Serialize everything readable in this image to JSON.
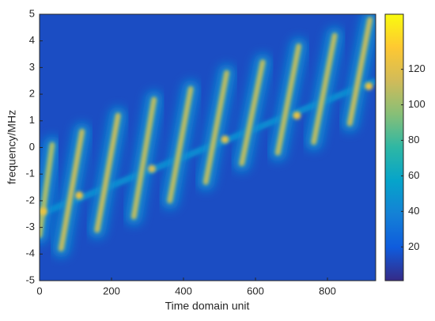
{
  "chart_data": {
    "type": "heatmap",
    "xlabel": "Time domain unit",
    "ylabel": "frequency/MHz",
    "xlim": [
      0,
      934
    ],
    "ylim": [
      -5,
      5
    ],
    "xticks": [
      0,
      200,
      400,
      600,
      800
    ],
    "yticks": [
      -5,
      -4,
      -3,
      -2,
      -1,
      0,
      1,
      2,
      3,
      4,
      5
    ],
    "clim": [
      1,
      151
    ],
    "cticks": [
      20,
      40,
      60,
      80,
      100,
      120
    ],
    "colormap": [
      "#352a87",
      "#0f5cdd",
      "#1481d6",
      "#06a4ca",
      "#2eb7a4",
      "#87bf77",
      "#d1bb59",
      "#fec832",
      "#f9fb0e"
    ],
    "background_value": 14,
    "streaks": [
      {
        "x": [
          0,
          35
        ],
        "y": [
          -3.3,
          0.1
        ],
        "value": 105
      },
      {
        "x": [
          60,
          118
        ],
        "y": [
          -3.8,
          0.6
        ],
        "value": 110
      },
      {
        "x": [
          160,
          218
        ],
        "y": [
          -3.1,
          1.2
        ],
        "value": 110
      },
      {
        "x": [
          262,
          318
        ],
        "y": [
          -2.6,
          1.8
        ],
        "value": 108
      },
      {
        "x": [
          362,
          420
        ],
        "y": [
          -2.0,
          2.2
        ],
        "value": 108
      },
      {
        "x": [
          462,
          520
        ],
        "y": [
          -1.3,
          2.8
        ],
        "value": 108
      },
      {
        "x": [
          562,
          620
        ],
        "y": [
          -0.6,
          3.2
        ],
        "value": 108
      },
      {
        "x": [
          662,
          720
        ],
        "y": [
          -0.2,
          3.8
        ],
        "value": 108
      },
      {
        "x": [
          762,
          820
        ],
        "y": [
          0.2,
          4.2
        ],
        "value": 108
      },
      {
        "x": [
          862,
          918
        ],
        "y": [
          0.9,
          4.8
        ],
        "value": 110
      }
    ],
    "trend": {
      "x": [
        0,
        934
      ],
      "y": [
        -2.5,
        2.5
      ],
      "value": 45
    },
    "peaks": [
      {
        "x": 10,
        "y": -2.4,
        "value": 125
      },
      {
        "x": 110,
        "y": -1.8,
        "value": 125
      },
      {
        "x": 312,
        "y": -0.8,
        "value": 115
      },
      {
        "x": 515,
        "y": 0.3,
        "value": 120
      },
      {
        "x": 715,
        "y": 1.2,
        "value": 125
      },
      {
        "x": 915,
        "y": 2.3,
        "value": 125
      }
    ]
  }
}
